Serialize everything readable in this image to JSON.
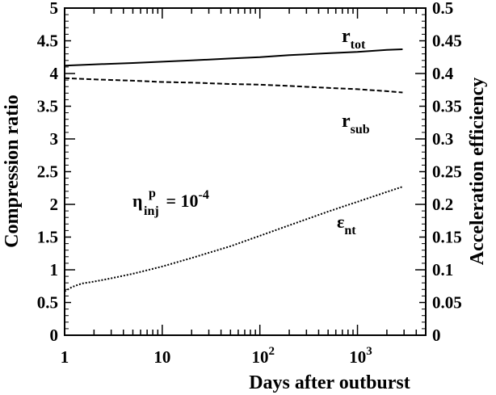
{
  "chart_data": {
    "type": "line",
    "xlabel": "Days after outburst",
    "ylabel_left": "Compression ratio",
    "ylabel_right": "Acceleration efficiency",
    "x_scale": "log",
    "xlim": [
      1,
      5000
    ],
    "ylim_left": [
      0,
      5
    ],
    "ylim_right": [
      0,
      0.5
    ],
    "x_ticks": [
      {
        "value": 1,
        "base": "1",
        "exp": ""
      },
      {
        "value": 10,
        "base": "10",
        "exp": ""
      },
      {
        "value": 100,
        "base": "10",
        "exp": "2"
      },
      {
        "value": 1000,
        "base": "10",
        "exp": "3"
      }
    ],
    "y_ticks_left": [
      "0",
      "0.5",
      "1",
      "1.5",
      "2",
      "2.5",
      "3",
      "3.5",
      "4",
      "4.5",
      "5"
    ],
    "y_ticks_right": [
      "0",
      "0.05",
      "0.1",
      "0.15",
      "0.2",
      "0.25",
      "0.3",
      "0.35",
      "0.4",
      "0.45",
      "0.5"
    ],
    "series": [
      {
        "name": "r_tot",
        "axis": "left",
        "style": "solid",
        "x": [
          1,
          2,
          5,
          10,
          20,
          50,
          100,
          200,
          500,
          1000,
          2000,
          2900
        ],
        "y": [
          4.12,
          4.14,
          4.16,
          4.18,
          4.2,
          4.23,
          4.25,
          4.28,
          4.31,
          4.33,
          4.36,
          4.37
        ]
      },
      {
        "name": "r_sub",
        "axis": "left",
        "style": "dashed",
        "x": [
          1,
          2,
          5,
          10,
          20,
          50,
          100,
          200,
          500,
          1000,
          2000,
          2900
        ],
        "y": [
          3.93,
          3.91,
          3.89,
          3.87,
          3.86,
          3.84,
          3.83,
          3.81,
          3.78,
          3.76,
          3.73,
          3.71
        ]
      },
      {
        "name": "ε_nt",
        "axis": "right",
        "style": "dotted",
        "x": [
          1,
          1.2,
          1.5,
          2,
          3,
          5,
          10,
          20,
          50,
          100,
          200,
          500,
          1000,
          2000,
          2900
        ],
        "y": [
          0.067,
          0.074,
          0.079,
          0.082,
          0.087,
          0.094,
          0.105,
          0.118,
          0.136,
          0.152,
          0.168,
          0.189,
          0.204,
          0.219,
          0.227
        ]
      }
    ],
    "annotations": {
      "r_tot": {
        "main": "r",
        "sub": "tot"
      },
      "r_sub": {
        "main": "r",
        "sub": "sub"
      },
      "eps": {
        "main": "ε",
        "sub": "nt"
      },
      "eta": {
        "main": "η",
        "sub": "inj",
        "sup": "p",
        "eq": " = 10",
        "exp": "-4"
      }
    }
  }
}
